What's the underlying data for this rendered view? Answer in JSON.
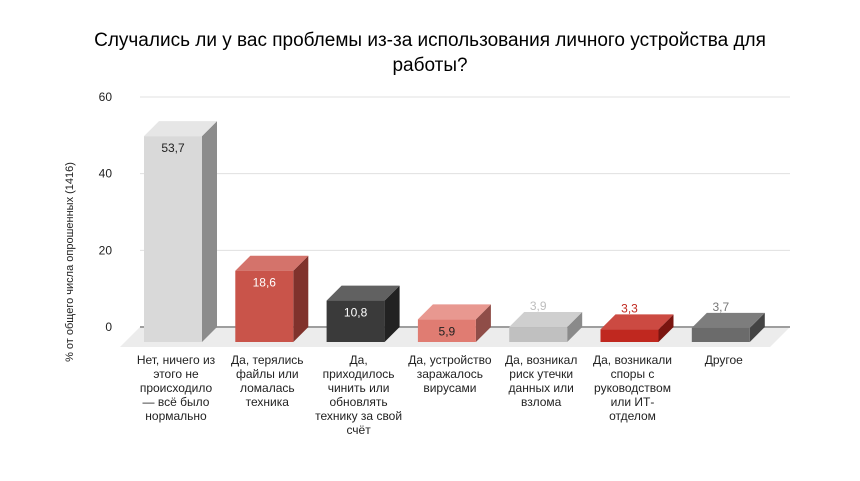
{
  "chart_data": {
    "type": "bar",
    "style": "3d",
    "title": "Случались ли у вас проблемы из-за использования личного устройства для работы?",
    "title_lines": [
      "Случались ли у вас проблемы из-за использования личного устройства для",
      "работы?"
    ],
    "ylabel": "% от общего числа опрошенных (1416)",
    "ylim": [
      0,
      60
    ],
    "yticks": [
      0,
      20,
      40,
      60
    ],
    "grid": true,
    "categories": [
      "Нет, ничего из этого не происходило — всё было нормально",
      "Да, терялись файлы или ломалась техника",
      "Да, приходилось чинить или обновлять технику за свой счёт",
      "Да, устройство заражалось вирусами",
      "Да, возникал риск утечки данных или взлома",
      "Да, возникали споры с руководством или ИТ-отделом",
      "Другое"
    ],
    "category_lines": [
      [
        "Нет, ничего из",
        "этого не",
        "происходило",
        "— всё было",
        "нормально"
      ],
      [
        "Да, терялись",
        "файлы или",
        "ломалась",
        "техника"
      ],
      [
        "Да,",
        "приходилось",
        "чинить или",
        "обновлять",
        "технику за свой",
        "счёт"
      ],
      [
        "Да, устройство",
        "заражалось",
        "вирусами"
      ],
      [
        "Да, возникал",
        "риск утечки",
        "данных или",
        "взлома"
      ],
      [
        "Да, возникали",
        "споры с",
        "руководством",
        "или ИТ-",
        "отделом"
      ],
      [
        "Другое"
      ]
    ],
    "values": [
      53.7,
      18.6,
      10.8,
      5.9,
      3.9,
      3.3,
      3.7
    ],
    "value_labels": [
      "53,7",
      "18,6",
      "10,8",
      "5,9",
      "3,9",
      "3,3",
      "3,7"
    ],
    "colors": [
      "#d9d9d9",
      "#c9544a",
      "#3a3a3a",
      "#e07c72",
      "#c0c0c0",
      "#c0281f",
      "#6b6b6b"
    ],
    "side_colors": [
      "#8c8c8c",
      "#80322c",
      "#222222",
      "#8f4d48",
      "#8a8a8a",
      "#7a1510",
      "#444444"
    ],
    "top_colors": [
      "#e6e6e6",
      "#d4736b",
      "#616161",
      "#e89890",
      "#cfcfcf",
      "#cc4a42",
      "#7d7d7d"
    ],
    "label_colors": [
      "#222222",
      "#ffffff",
      "#ffffff",
      "#222222",
      "#bdbdbd",
      "#c0281f",
      "#777777"
    ]
  }
}
